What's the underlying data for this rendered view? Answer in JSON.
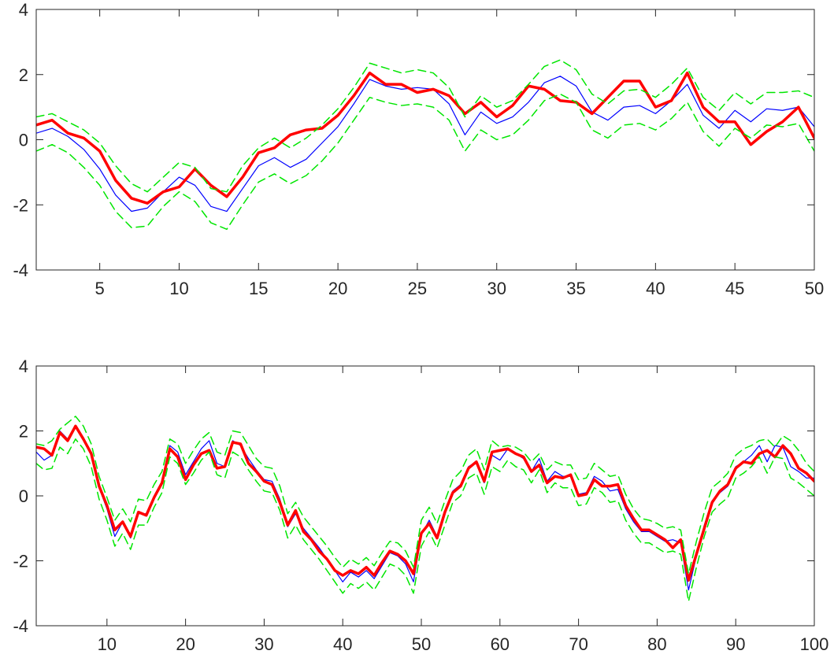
{
  "colors": {
    "blue": "#0000ff",
    "red": "#ff0000",
    "green": "#00e600",
    "axis": "#262626",
    "background": "#ffffff"
  },
  "chart_data": [
    {
      "type": "line",
      "xlim": [
        1,
        50
      ],
      "ylim": [
        -4,
        4
      ],
      "xticks": [
        5,
        10,
        15,
        20,
        25,
        30,
        35,
        40,
        45,
        50
      ],
      "yticks": [
        -4,
        -2,
        0,
        2,
        4
      ],
      "xtick_labels": [
        "5",
        "10",
        "15",
        "20",
        "25",
        "30",
        "35",
        "40",
        "45",
        "50"
      ],
      "ytick_labels": [
        "-4",
        "-2",
        "0",
        "2",
        "4"
      ],
      "grid": false,
      "x": [
        1,
        2,
        3,
        4,
        5,
        6,
        7,
        8,
        9,
        10,
        11,
        12,
        13,
        14,
        15,
        16,
        17,
        18,
        19,
        20,
        21,
        22,
        23,
        24,
        25,
        26,
        27,
        28,
        29,
        30,
        31,
        32,
        33,
        34,
        35,
        36,
        37,
        38,
        39,
        40,
        41,
        42,
        43,
        44,
        45,
        46,
        47,
        48,
        49,
        50
      ],
      "series": [
        {
          "color": "#0000ff",
          "style": "solid",
          "width": 1.2,
          "values": [
            0.2,
            0.35,
            0.1,
            -0.3,
            -0.9,
            -1.7,
            -2.2,
            -2.1,
            -1.6,
            -1.15,
            -1.4,
            -2.05,
            -2.2,
            -1.5,
            -0.8,
            -0.55,
            -0.85,
            -0.6,
            -0.1,
            0.4,
            1.1,
            1.85,
            1.65,
            1.55,
            1.6,
            1.55,
            1.1,
            0.15,
            0.85,
            0.5,
            0.7,
            1.15,
            1.75,
            1.95,
            1.65,
            0.85,
            0.6,
            1.0,
            1.05,
            0.8,
            1.2,
            1.7,
            0.75,
            0.35,
            0.9,
            0.55,
            0.95,
            0.9,
            1.0,
            0.4
          ]
        },
        {
          "color": "#ff0000",
          "style": "solid",
          "width": 3.5,
          "values": [
            0.45,
            0.6,
            0.2,
            0.05,
            -0.35,
            -1.25,
            -1.8,
            -1.95,
            -1.6,
            -1.45,
            -0.9,
            -1.4,
            -1.75,
            -1.15,
            -0.4,
            -0.25,
            0.15,
            0.3,
            0.35,
            0.75,
            1.35,
            2.05,
            1.7,
            1.7,
            1.45,
            1.55,
            1.35,
            0.8,
            1.15,
            0.7,
            1.05,
            1.65,
            1.55,
            1.2,
            1.15,
            0.8,
            1.3,
            1.8,
            1.8,
            1.0,
            1.2,
            2.05,
            1.0,
            0.55,
            0.55,
            -0.15,
            0.25,
            0.55,
            1.0,
            0.05
          ]
        },
        {
          "color": "#00e600",
          "style": "dashed",
          "width": 1.5,
          "values": [
            0.7,
            0.8,
            0.55,
            0.3,
            -0.1,
            -0.8,
            -1.35,
            -1.6,
            -1.15,
            -0.7,
            -0.85,
            -1.5,
            -1.6,
            -0.8,
            -0.25,
            0.05,
            -0.25,
            0.05,
            0.45,
            0.95,
            1.6,
            2.35,
            2.2,
            2.05,
            2.15,
            2.05,
            1.6,
            0.7,
            1.35,
            1.0,
            1.2,
            1.7,
            2.25,
            2.45,
            2.15,
            1.4,
            1.1,
            1.5,
            1.55,
            1.3,
            1.7,
            2.2,
            1.3,
            0.9,
            1.45,
            1.1,
            1.45,
            1.45,
            1.5,
            1.3
          ]
        },
        {
          "color": "#00e600",
          "style": "dashed",
          "width": 1.5,
          "values": [
            -0.35,
            -0.15,
            -0.4,
            -0.85,
            -1.4,
            -2.2,
            -2.7,
            -2.65,
            -2.05,
            -1.6,
            -1.9,
            -2.55,
            -2.75,
            -2.0,
            -1.3,
            -1.05,
            -1.35,
            -1.1,
            -0.65,
            -0.1,
            0.6,
            1.3,
            1.15,
            1.05,
            1.1,
            1.0,
            0.6,
            -0.35,
            0.3,
            0.0,
            0.15,
            0.6,
            1.2,
            1.4,
            1.15,
            0.3,
            0.05,
            0.45,
            0.5,
            0.3,
            0.65,
            1.15,
            0.25,
            -0.2,
            0.35,
            0.05,
            0.45,
            0.4,
            0.5,
            -0.35
          ]
        }
      ]
    },
    {
      "type": "line",
      "xlim": [
        1,
        100
      ],
      "ylim": [
        -4,
        4
      ],
      "xticks": [
        10,
        20,
        30,
        40,
        50,
        60,
        70,
        80,
        90,
        100
      ],
      "yticks": [
        -4,
        -2,
        0,
        2,
        4
      ],
      "xtick_labels": [
        "10",
        "20",
        "30",
        "40",
        "50",
        "60",
        "70",
        "80",
        "90",
        "100"
      ],
      "ytick_labels": [
        "-4",
        "-2",
        "0",
        "2",
        "4"
      ],
      "grid": false,
      "x": [
        1,
        2,
        3,
        4,
        5,
        6,
        7,
        8,
        9,
        10,
        11,
        12,
        13,
        14,
        15,
        16,
        17,
        18,
        19,
        20,
        21,
        22,
        23,
        24,
        25,
        26,
        27,
        28,
        29,
        30,
        31,
        32,
        33,
        34,
        35,
        36,
        37,
        38,
        39,
        40,
        41,
        42,
        43,
        44,
        45,
        46,
        47,
        48,
        49,
        50,
        51,
        52,
        53,
        54,
        55,
        56,
        57,
        58,
        59,
        60,
        61,
        62,
        63,
        64,
        65,
        66,
        67,
        68,
        69,
        70,
        71,
        72,
        73,
        74,
        75,
        76,
        77,
        78,
        79,
        80,
        81,
        82,
        83,
        84,
        85,
        86,
        87,
        88,
        89,
        90,
        91,
        92,
        93,
        94,
        95,
        96,
        97,
        98,
        99,
        100
      ],
      "series": [
        {
          "color": "#0000ff",
          "style": "solid",
          "width": 1.2,
          "values": [
            1.35,
            1.1,
            1.25,
            2.0,
            1.75,
            2.15,
            1.8,
            1.25,
            0.25,
            -0.4,
            -1.25,
            -0.8,
            -1.3,
            -0.55,
            -0.55,
            0.0,
            0.45,
            1.55,
            1.35,
            0.65,
            1.05,
            1.45,
            1.7,
            1.0,
            0.9,
            1.7,
            1.55,
            1.15,
            0.8,
            0.5,
            0.45,
            -0.1,
            -0.95,
            -0.55,
            -1.0,
            -1.3,
            -1.6,
            -1.95,
            -2.3,
            -2.65,
            -2.35,
            -2.5,
            -2.3,
            -2.55,
            -2.15,
            -1.75,
            -1.85,
            -2.1,
            -2.65,
            -1.2,
            -0.75,
            -1.25,
            -0.55,
            0.15,
            0.35,
            0.9,
            1.05,
            0.4,
            1.25,
            1.1,
            1.45,
            1.3,
            1.15,
            0.75,
            1.15,
            0.45,
            0.75,
            0.6,
            0.6,
            0.05,
            0.1,
            0.6,
            0.45,
            0.15,
            0.2,
            -0.4,
            -0.8,
            -1.1,
            -1.1,
            -1.25,
            -1.4,
            -1.35,
            -1.45,
            -2.9,
            -1.85,
            -0.9,
            -0.15,
            0.1,
            0.3,
            0.9,
            1.05,
            1.25,
            1.55,
            1.05,
            1.55,
            1.5,
            0.9,
            0.75,
            0.55,
            0.55
          ]
        },
        {
          "color": "#ff0000",
          "style": "solid",
          "width": 3.5,
          "values": [
            1.5,
            1.45,
            1.25,
            1.95,
            1.7,
            2.15,
            1.75,
            1.3,
            0.3,
            -0.3,
            -1.05,
            -0.8,
            -1.25,
            -0.5,
            -0.6,
            -0.05,
            0.4,
            1.45,
            1.2,
            0.5,
            0.95,
            1.3,
            1.4,
            0.85,
            0.9,
            1.65,
            1.6,
            1.0,
            0.75,
            0.45,
            0.35,
            -0.2,
            -0.9,
            -0.45,
            -1.1,
            -1.35,
            -1.7,
            -1.95,
            -2.3,
            -2.45,
            -2.3,
            -2.4,
            -2.2,
            -2.45,
            -2.05,
            -1.7,
            -1.8,
            -2.0,
            -2.4,
            -1.15,
            -0.85,
            -1.3,
            -0.5,
            0.1,
            0.3,
            0.85,
            1.05,
            0.45,
            1.35,
            1.4,
            1.45,
            1.3,
            1.2,
            0.75,
            0.95,
            0.4,
            0.6,
            0.55,
            0.65,
            0.0,
            0.05,
            0.5,
            0.3,
            0.3,
            0.35,
            -0.3,
            -0.7,
            -1.05,
            -1.05,
            -1.2,
            -1.35,
            -1.6,
            -1.35,
            -2.6,
            -1.8,
            -1.0,
            -0.2,
            0.15,
            0.35,
            0.85,
            1.05,
            1.0,
            1.3,
            1.4,
            1.2,
            1.55,
            1.3,
            0.85,
            0.7,
            0.45
          ]
        },
        {
          "color": "#00e600",
          "style": "dashed",
          "width": 1.5,
          "values": [
            1.6,
            1.55,
            1.7,
            2.05,
            2.25,
            2.45,
            2.15,
            1.6,
            0.6,
            -0.05,
            -0.75,
            -0.4,
            -0.8,
            -0.1,
            -0.15,
            0.35,
            0.75,
            1.75,
            1.6,
            1.0,
            1.4,
            1.75,
            1.95,
            1.35,
            1.25,
            2.0,
            1.95,
            1.55,
            1.15,
            0.9,
            0.85,
            0.3,
            -0.55,
            -0.2,
            -0.65,
            -0.95,
            -1.25,
            -1.55,
            -1.9,
            -2.2,
            -1.95,
            -2.1,
            -1.9,
            -2.15,
            -1.75,
            -1.4,
            -1.45,
            -1.7,
            -2.2,
            -0.75,
            -0.35,
            -0.85,
            -0.15,
            0.5,
            0.75,
            1.25,
            1.45,
            0.8,
            1.7,
            1.5,
            1.55,
            1.5,
            1.35,
            1.05,
            1.3,
            0.8,
            1.05,
            0.95,
            0.95,
            0.5,
            0.55,
            1.0,
            0.8,
            0.6,
            0.65,
            0.05,
            -0.4,
            -0.7,
            -0.75,
            -0.85,
            -1.0,
            -0.95,
            -1.05,
            -2.4,
            -1.4,
            -0.5,
            0.25,
            0.45,
            0.7,
            1.25,
            1.45,
            1.55,
            1.7,
            1.75,
            1.5,
            1.85,
            1.7,
            1.4,
            1.0,
            0.75
          ]
        },
        {
          "color": "#00e600",
          "style": "dashed",
          "width": 1.5,
          "values": [
            1.0,
            0.8,
            0.85,
            1.5,
            1.3,
            1.75,
            1.45,
            0.9,
            -0.1,
            -0.75,
            -1.55,
            -1.15,
            -1.65,
            -0.9,
            -0.9,
            -0.35,
            0.1,
            1.2,
            1.0,
            0.35,
            0.7,
            1.1,
            1.35,
            0.65,
            0.55,
            1.35,
            1.2,
            0.8,
            0.45,
            0.15,
            0.1,
            -0.45,
            -1.3,
            -0.9,
            -1.35,
            -1.65,
            -1.95,
            -2.3,
            -2.65,
            -3.0,
            -2.7,
            -2.85,
            -2.65,
            -2.9,
            -2.5,
            -2.1,
            -2.2,
            -2.45,
            -3.0,
            -1.55,
            -1.1,
            -1.6,
            -0.9,
            -0.2,
            0.0,
            0.55,
            0.7,
            0.05,
            0.9,
            0.75,
            1.1,
            0.9,
            0.8,
            0.4,
            0.8,
            0.1,
            0.4,
            0.25,
            0.25,
            -0.3,
            -0.25,
            0.25,
            0.1,
            -0.2,
            -0.15,
            -0.75,
            -1.15,
            -1.45,
            -1.45,
            -1.6,
            -1.75,
            -1.7,
            -1.8,
            -3.25,
            -2.2,
            -1.25,
            -0.5,
            -0.25,
            -0.05,
            0.55,
            0.7,
            0.9,
            1.2,
            0.7,
            1.2,
            1.15,
            0.55,
            0.4,
            0.2,
            0.0
          ]
        }
      ]
    }
  ]
}
